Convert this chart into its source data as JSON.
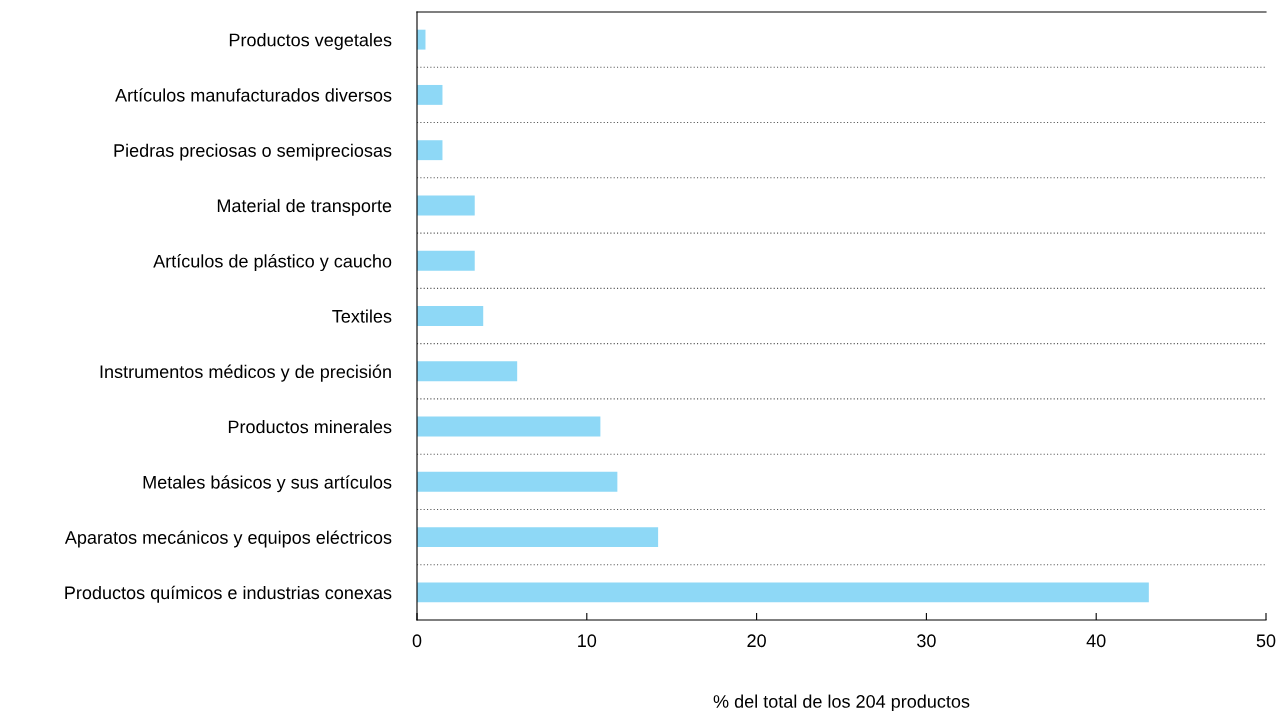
{
  "chart_data": {
    "type": "bar",
    "orientation": "horizontal",
    "categories": [
      "Productos vegetales",
      "Artículos manufacturados diversos",
      "Piedras preciosas o semipreciosas",
      "Material de transporte",
      "Artículos de plástico y caucho",
      "Textiles",
      "Instrumentos médicos y de precisión",
      "Productos minerales",
      "Metales básicos y sus artículos",
      "Aparatos mecánicos y equipos eléctricos",
      "Productos químicos e industrias conexas"
    ],
    "values": [
      0.5,
      1.5,
      1.5,
      3.4,
      3.4,
      3.9,
      5.9,
      10.8,
      11.8,
      14.2,
      43.1
    ],
    "color": "#8ed8f6",
    "xlabel": "% del total de los 204 productos",
    "xlim": [
      0,
      50
    ],
    "xticks": [
      0,
      10,
      20,
      30,
      40,
      50
    ],
    "grid": "y",
    "legend": false
  }
}
